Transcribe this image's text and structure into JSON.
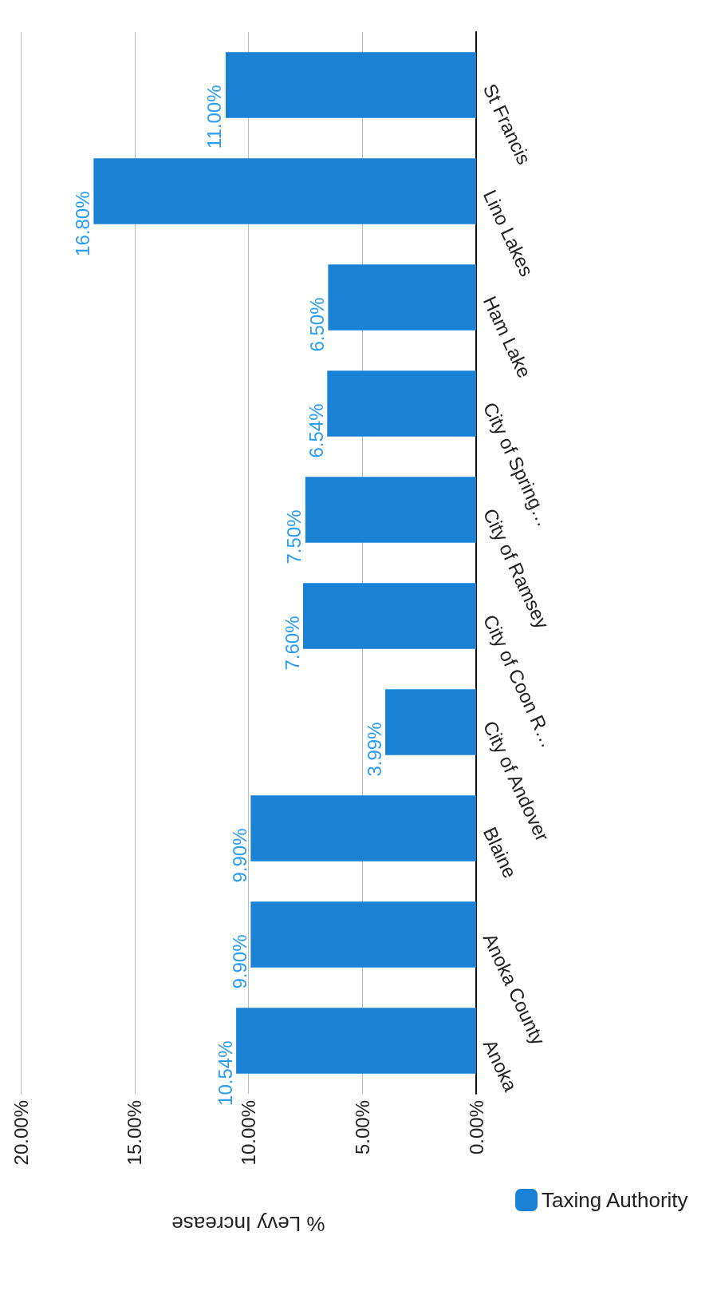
{
  "chart_data": {
    "type": "bar",
    "orientation": "horizontal",
    "xlabel": "% Levy Increase",
    "categories": [
      "St Francis",
      "Lino Lakes",
      "Ham Lake",
      "City of Spring…",
      "City of Ramsey",
      "City of Coon R…",
      "City of Andover",
      "Blaine",
      "Anoka County",
      "Anoka"
    ],
    "series": [
      {
        "name": "Taxing Authority",
        "color": "#1a82d4",
        "values": [
          11.0,
          16.8,
          6.5,
          6.54,
          7.5,
          7.6,
          3.99,
          9.9,
          9.9,
          10.54
        ],
        "value_labels": [
          "11.00%",
          "16.80%",
          "6.50%",
          "6.54%",
          "7.50%",
          "7.60%",
          "3.99%",
          "9.90%",
          "9.90%",
          "10.54%"
        ]
      }
    ],
    "xlim": [
      20,
      0
    ],
    "xticks": [
      {
        "value": 0,
        "label": "0.00%"
      },
      {
        "value": 5,
        "label": "5.00%"
      },
      {
        "value": 10,
        "label": "10.00%"
      },
      {
        "value": 15,
        "label": "15.00%"
      },
      {
        "value": 20,
        "label": "20.00%"
      }
    ],
    "grid": "x",
    "legend": "bottom right"
  }
}
